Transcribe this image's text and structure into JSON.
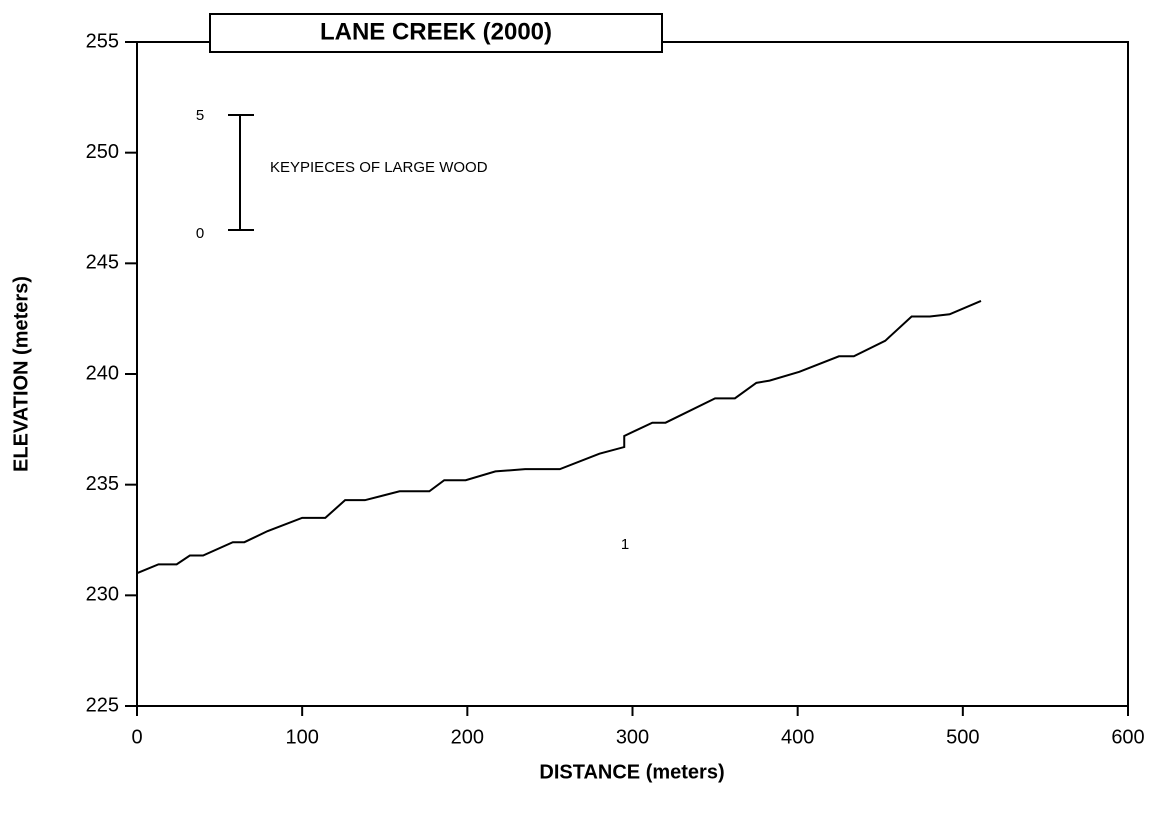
{
  "chart_data": {
    "type": "line",
    "title": "LANE CREEK  (2000)",
    "xlabel": "DISTANCE (meters)",
    "ylabel": "ELEVATION (meters)",
    "x": [
      0,
      13,
      24,
      32,
      40,
      58,
      65,
      79,
      100,
      114,
      126,
      138,
      159,
      177,
      186,
      199,
      217,
      235,
      256,
      280,
      295,
      295,
      312,
      320,
      350,
      362,
      375,
      383,
      401,
      425,
      434,
      453,
      469,
      480,
      492,
      511
    ],
    "values": [
      231.0,
      231.4,
      231.4,
      231.8,
      231.8,
      232.4,
      232.4,
      232.9,
      233.5,
      233.5,
      234.3,
      234.3,
      234.7,
      234.7,
      235.2,
      235.2,
      235.6,
      235.7,
      235.7,
      236.4,
      236.7,
      237.2,
      237.8,
      237.8,
      238.9,
      238.9,
      239.6,
      239.7,
      240.1,
      240.8,
      240.8,
      241.5,
      242.6,
      242.6,
      242.7,
      243.3
    ],
    "color": "#000000",
    "xlim": [
      0,
      600
    ],
    "xticks": [
      0,
      100,
      200,
      300,
      400,
      500,
      600
    ],
    "ylim": [
      225,
      255
    ],
    "yticks": [
      225,
      230,
      235,
      240,
      245,
      250,
      255
    ],
    "grid": false,
    "scale_bar": {
      "label": "KEYPIECES OF LARGE WOOD",
      "top": 5,
      "bottom": 0
    },
    "annotation": "1"
  }
}
